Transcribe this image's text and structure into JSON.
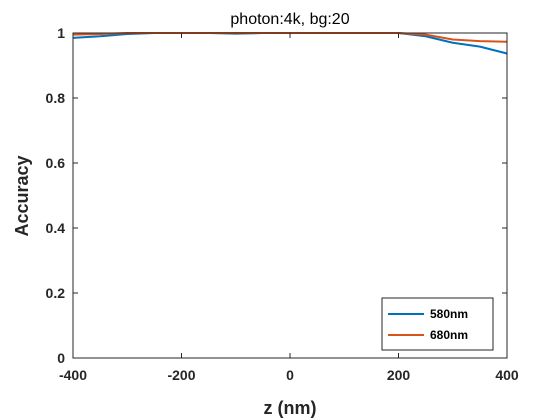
{
  "chart_data": {
    "type": "line",
    "title": "photon:4k, bg:20",
    "xlabel": "z (nm)",
    "ylabel": "Accuracy",
    "xlim": [
      -400,
      400
    ],
    "ylim": [
      0,
      1
    ],
    "xticks": [
      -400,
      -200,
      0,
      200,
      400
    ],
    "xtick_labels": [
      "-400",
      "-200",
      "0",
      "200",
      "400"
    ],
    "yticks": [
      0,
      0.2,
      0.4,
      0.6,
      0.8,
      1
    ],
    "ytick_labels": [
      "0",
      "0.2",
      "0.4",
      "0.6",
      "0.8",
      "1"
    ],
    "grid": false,
    "legend_position": "bottom-right",
    "x": [
      -400,
      -350,
      -300,
      -250,
      -200,
      -150,
      -100,
      -50,
      0,
      50,
      100,
      150,
      200,
      250,
      300,
      350,
      400
    ],
    "series": [
      {
        "name": "580nm",
        "color": "#0072BD",
        "values": [
          0.985,
          0.99,
          0.997,
          1.0,
          1.0,
          1.0,
          0.998,
          1.0,
          1.0,
          1.0,
          1.0,
          1.0,
          1.0,
          0.99,
          0.97,
          0.958,
          0.937
        ]
      },
      {
        "name": "680nm",
        "color": "#D95319",
        "values": [
          0.995,
          0.997,
          1.0,
          1.0,
          1.0,
          1.0,
          1.0,
          1.0,
          1.0,
          1.0,
          1.0,
          1.0,
          1.0,
          0.995,
          0.98,
          0.975,
          0.973
        ]
      }
    ]
  }
}
